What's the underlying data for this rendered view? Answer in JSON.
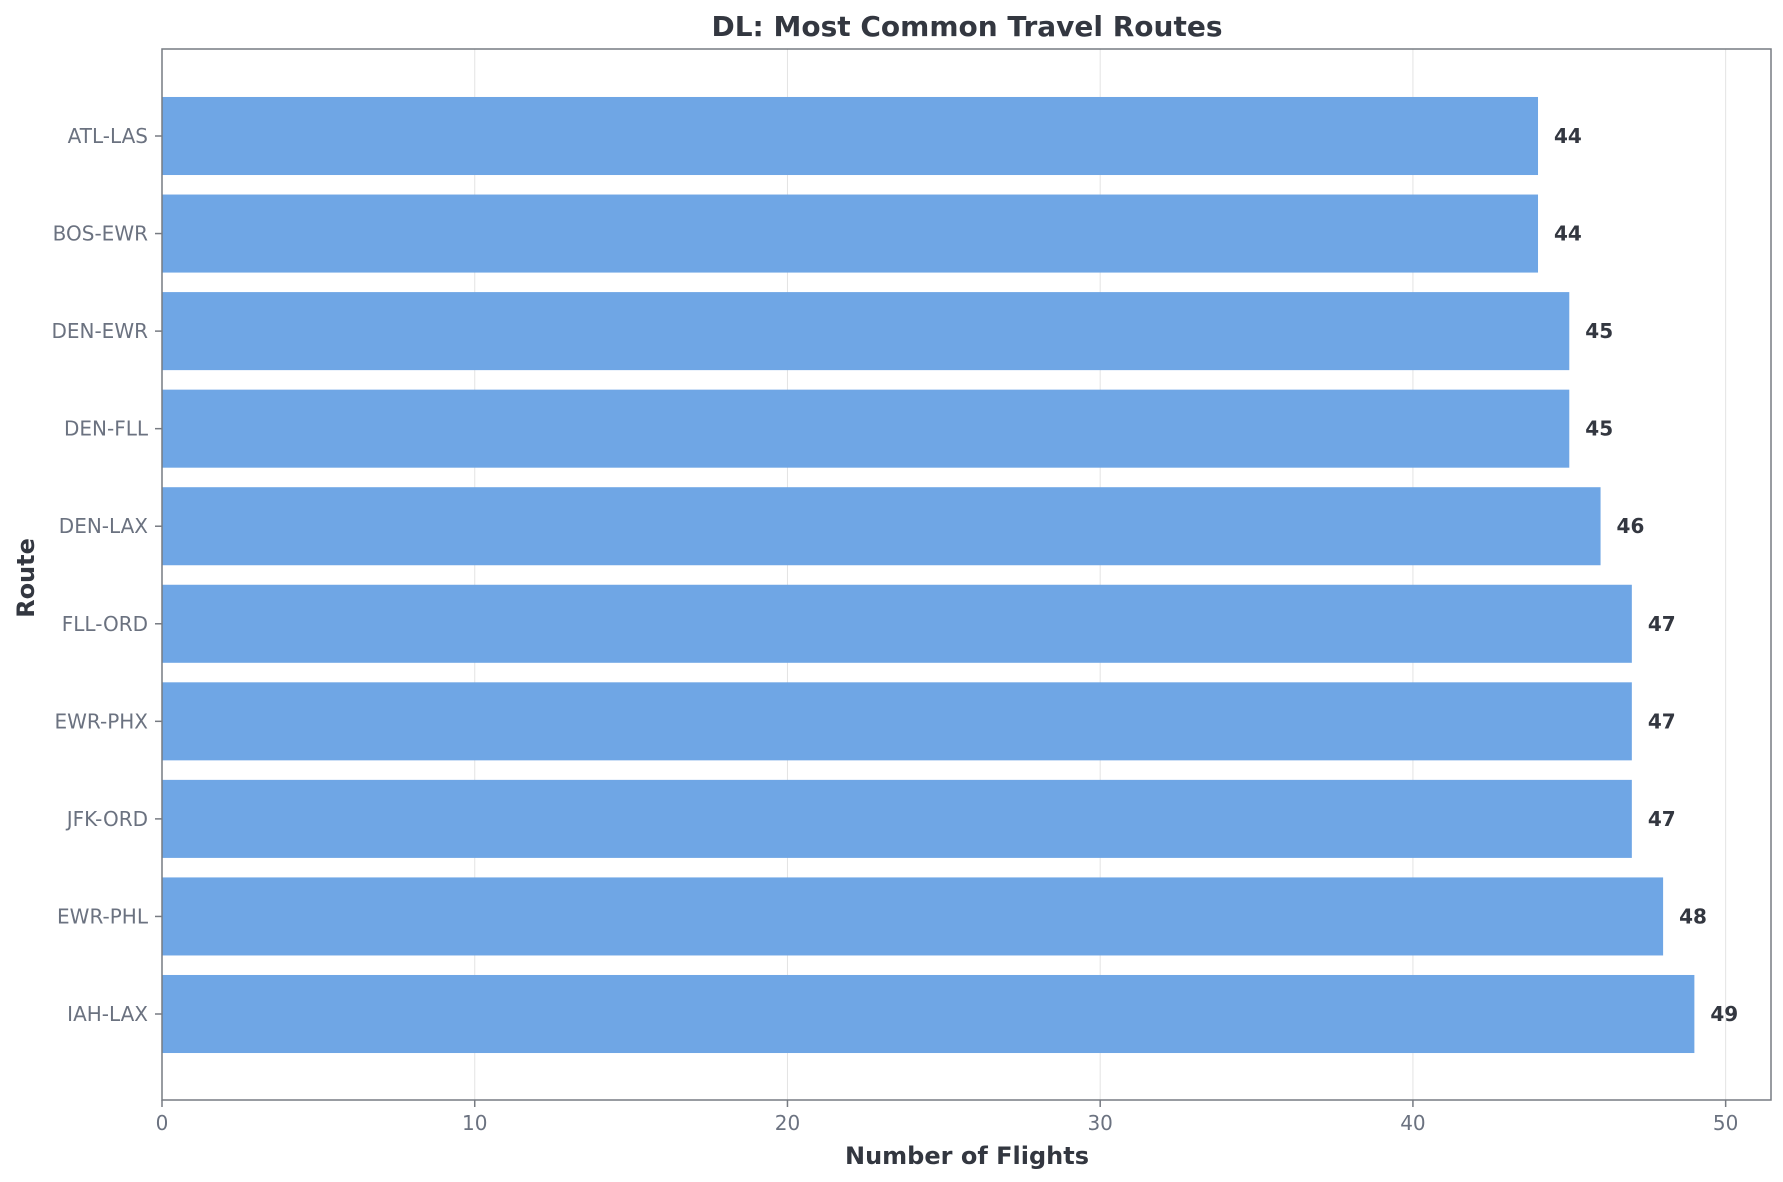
{
  "chart_data": {
    "type": "bar",
    "orientation": "horizontal",
    "title": "DL: Most Common Travel Routes",
    "xlabel": "Number of Flights",
    "ylabel": "Route",
    "categories": [
      "ATL-LAS",
      "BOS-EWR",
      "DEN-EWR",
      "DEN-FLL",
      "DEN-LAX",
      "FLL-ORD",
      "EWR-PHX",
      "JFK-ORD",
      "EWR-PHL",
      "IAH-LAX"
    ],
    "values": [
      44,
      44,
      45,
      45,
      46,
      47,
      47,
      47,
      48,
      49
    ],
    "data_labels": [
      "44",
      "44",
      "45",
      "45",
      "46",
      "47",
      "47",
      "47",
      "48",
      "49"
    ],
    "xticks": [
      0,
      10,
      20,
      30,
      40,
      50
    ],
    "xtick_labels": [
      "0",
      "10",
      "20",
      "30",
      "40",
      "50"
    ],
    "xlim": [
      0,
      51.45
    ],
    "grid": "x-only",
    "bar_color": "#6fa6e5"
  }
}
